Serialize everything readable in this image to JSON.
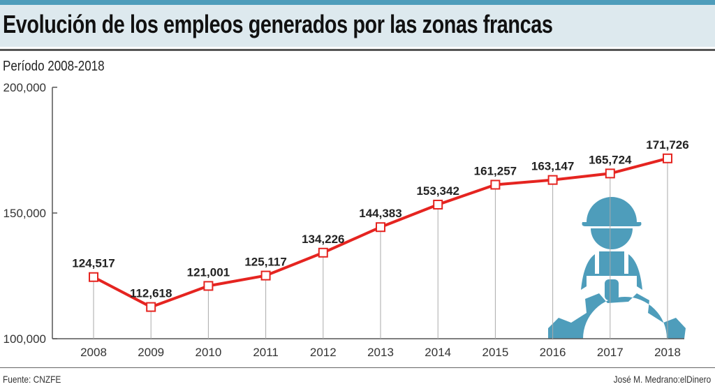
{
  "header": {
    "title": "Evolución de los empleos generados por las zonas francas",
    "subtitle": "Período 2008-2018"
  },
  "footer": {
    "source": "Fuente: CNZFE",
    "credit": "José M. Medrano:elDinero"
  },
  "colors": {
    "line": "#e52420",
    "accent": "#4e9dbb",
    "band": "#dde9ee"
  },
  "chart_data": {
    "type": "line",
    "categories": [
      "2008",
      "2009",
      "2010",
      "2011",
      "2012",
      "2013",
      "2014",
      "2015",
      "2016",
      "2017",
      "2018"
    ],
    "values": [
      124517,
      112618,
      121001,
      125117,
      134226,
      144383,
      153342,
      161257,
      163147,
      165724,
      171726
    ],
    "data_labels": [
      "124,517",
      "112,618",
      "121,001",
      "125,117",
      "134,226",
      "144,383",
      "153,342",
      "161,257",
      "163,147",
      "165,724",
      "171,726"
    ],
    "ylim": [
      100000,
      200000
    ],
    "yticks": [
      100000,
      150000,
      200000
    ],
    "ytick_labels": [
      "100,000",
      "150,000",
      "200,000"
    ],
    "grid": false,
    "decoration": "worker-gear-icon"
  }
}
